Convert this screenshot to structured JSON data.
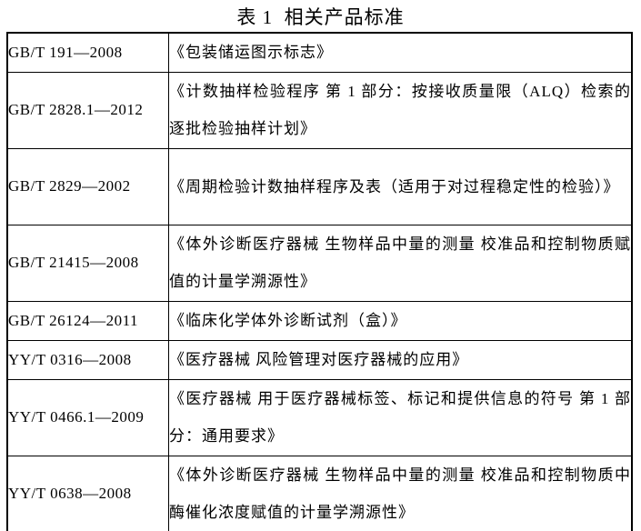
{
  "page": {
    "title": "表 1  相关产品标准"
  },
  "table": {
    "rows": [
      {
        "code": "GB/T 191—2008",
        "name": "《包装储运图示标志》"
      },
      {
        "code": "GB/T 2828.1—2012",
        "name": "《计数抽样检验程序 第 1 部分：按接收质量限（ALQ）检索的逐批检验抽样计划》"
      },
      {
        "code": "GB/T 2829—2002",
        "name": "《周期检验计数抽样程序及表（适用于对过程稳定性的检验）》"
      },
      {
        "code": "GB/T 21415—2008",
        "name": "《体外诊断医疗器械 生物样品中量的测量 校准品和控制物质赋值的计量学溯源性》"
      },
      {
        "code": "GB/T 26124—2011",
        "name": "《临床化学体外诊断试剂（盒）》"
      },
      {
        "code": "YY/T 0316—2008",
        "name": "《医疗器械 风险管理对医疗器械的应用》"
      },
      {
        "code": "YY/T 0466.1—2009",
        "name": "《医疗器械 用于医疗器械标签、标记和提供信息的符号 第 1 部分：通用要求》"
      },
      {
        "code": "YY/T 0638—2008",
        "name": "《体外诊断医疗器械 生物样品中量的测量 校准品和控制物质中酶催化浓度赋值的计量学溯源性》"
      }
    ]
  }
}
